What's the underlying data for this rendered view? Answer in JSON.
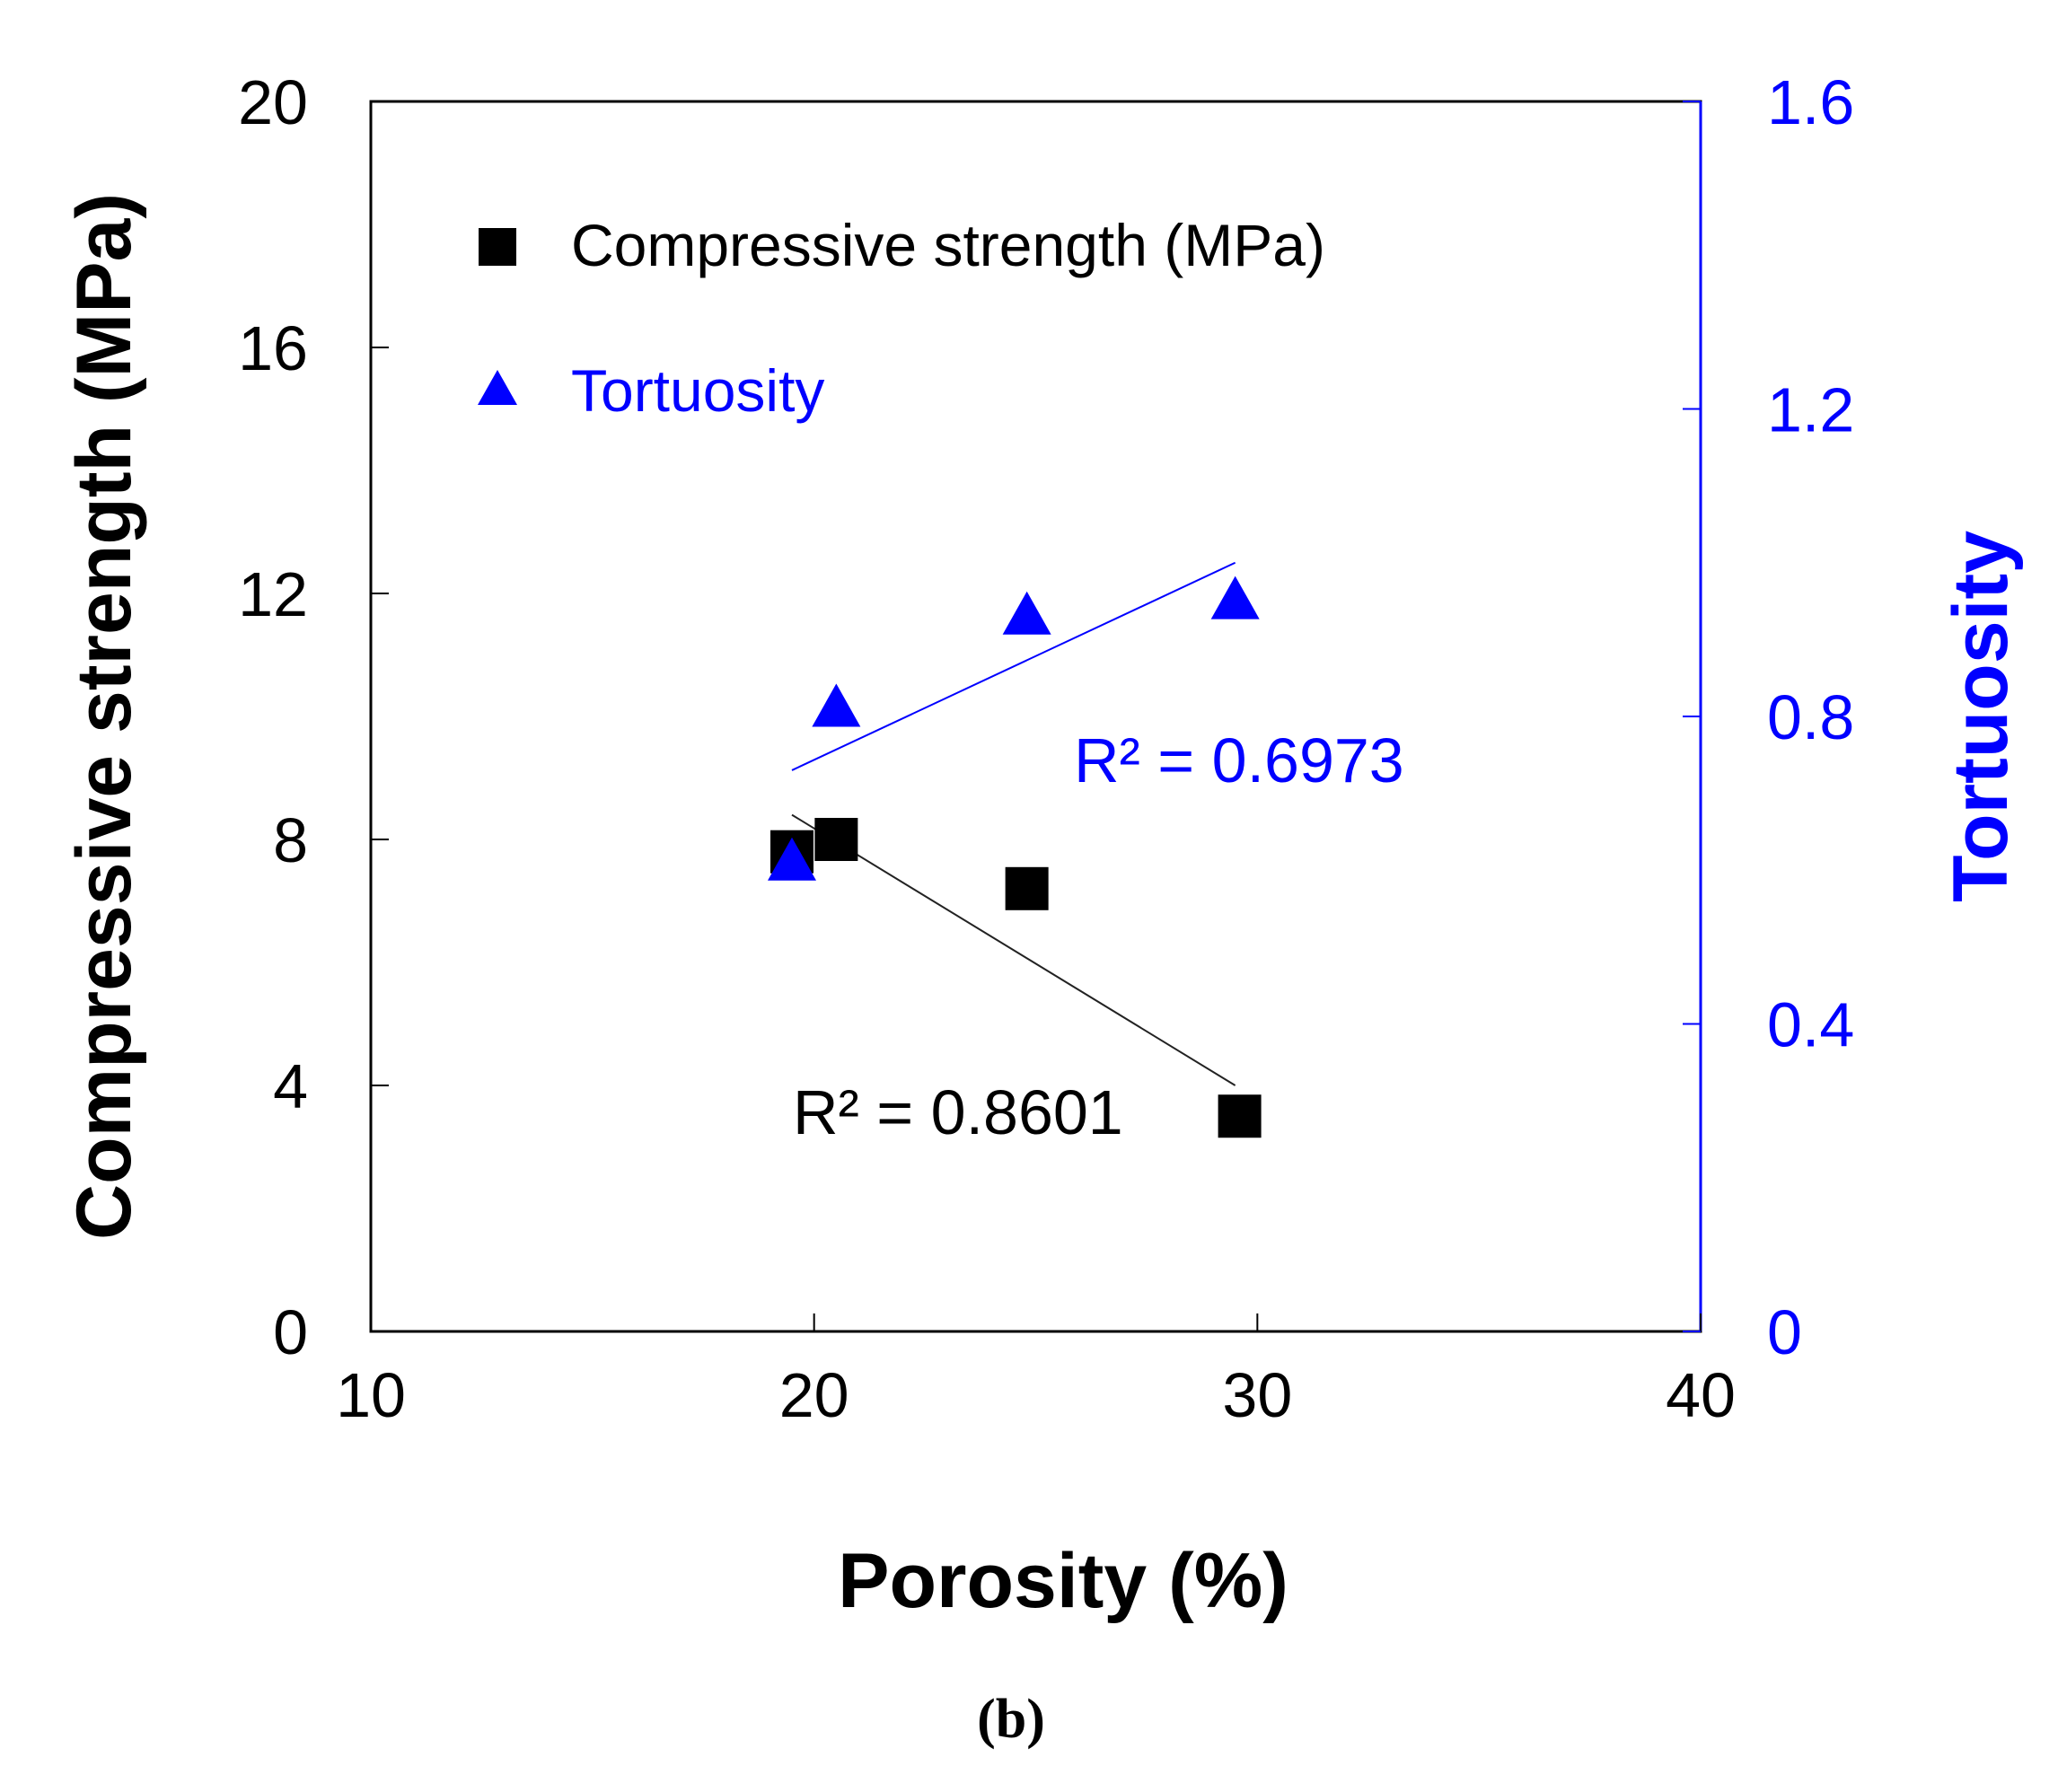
{
  "chart_data": {
    "type": "scatter",
    "xlabel": "Porosity (%)",
    "ylabel": "Compressive strength (MPa)",
    "y2label": "Tortuosity",
    "xlim": [
      10,
      40
    ],
    "ylim": [
      0,
      20
    ],
    "y2lim": [
      0,
      1.6
    ],
    "xticks": [
      "10",
      "20",
      "30",
      "40"
    ],
    "yticks": [
      "0",
      "4",
      "8",
      "12",
      "16",
      "20"
    ],
    "y2ticks": [
      "0",
      "0.4",
      "0.8",
      "1.2",
      "1.6"
    ],
    "grid": false,
    "legend_position": "top-left",
    "series": [
      {
        "name": "Compressive strength (MPa)",
        "axis": "left",
        "marker": "square",
        "color": "#000000",
        "x": [
          19.5,
          20.5,
          24.8,
          29.6
        ],
        "y": [
          7.8,
          8.0,
          7.2,
          3.5
        ],
        "trendline": {
          "x": [
            19.5,
            29.5
          ],
          "y": [
            8.4,
            4.0
          ],
          "r2_label": "R² = 0.8601"
        }
      },
      {
        "name": "Tortuosity",
        "axis": "right",
        "marker": "triangle",
        "color": "#0000ff",
        "x": [
          19.5,
          20.5,
          24.8,
          29.5
        ],
        "y": [
          0.61,
          0.81,
          0.93,
          0.95
        ],
        "trendline": {
          "x": [
            19.5,
            29.5
          ],
          "y": [
            0.73,
            1.0
          ],
          "r2_label": "R² = 0.6973"
        }
      }
    ],
    "panel_label": "(b)"
  }
}
